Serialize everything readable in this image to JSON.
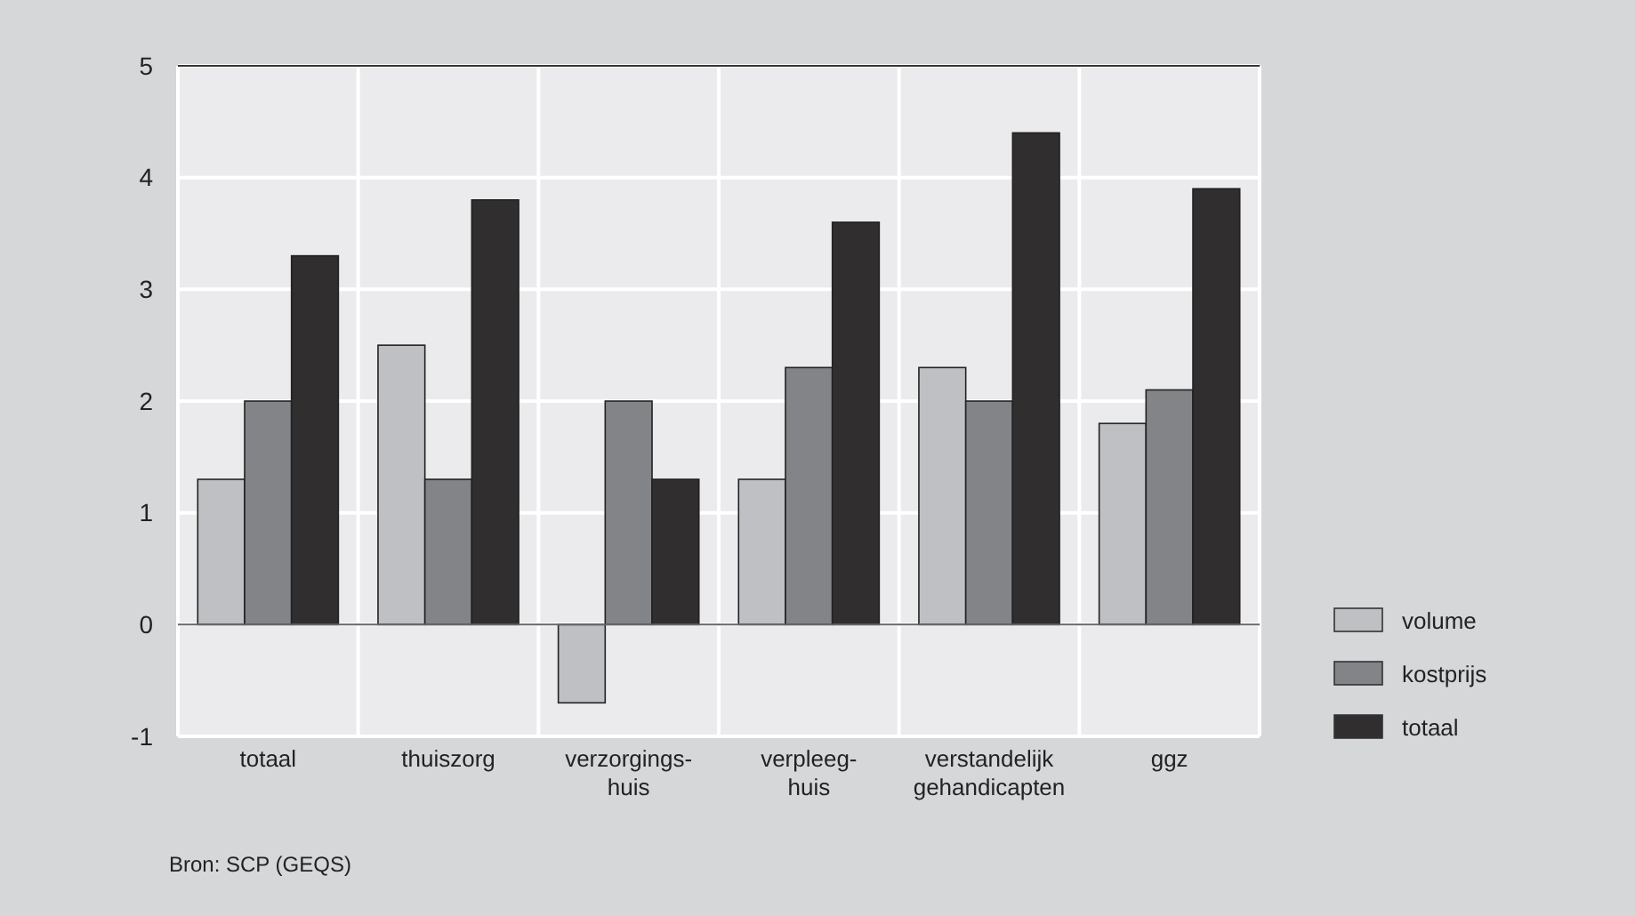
{
  "chart_data": {
    "type": "bar",
    "categories": [
      "totaal",
      "thuiszorg",
      "verzorgings-\nhuis",
      "verpleeg-\nhuis",
      "verstandelijk\ngehandicapten",
      "ggz"
    ],
    "series": [
      {
        "name": "volume",
        "color": "#bfc0c3",
        "values": [
          1.3,
          2.5,
          -0.7,
          1.3,
          2.3,
          1.8
        ]
      },
      {
        "name": "kostprijs",
        "color": "#838487",
        "values": [
          2.0,
          1.3,
          2.0,
          2.3,
          2.0,
          2.1
        ]
      },
      {
        "name": "totaal",
        "color": "#302e2f",
        "values": [
          3.3,
          3.8,
          1.3,
          3.6,
          4.4,
          3.9
        ]
      }
    ],
    "ylim": [
      -1,
      5
    ],
    "yticks": [
      -1,
      0,
      1,
      2,
      3,
      4,
      5
    ],
    "grid": true,
    "legend": "right",
    "annotations": [
      "Bron: SCP (GEQS)"
    ]
  }
}
